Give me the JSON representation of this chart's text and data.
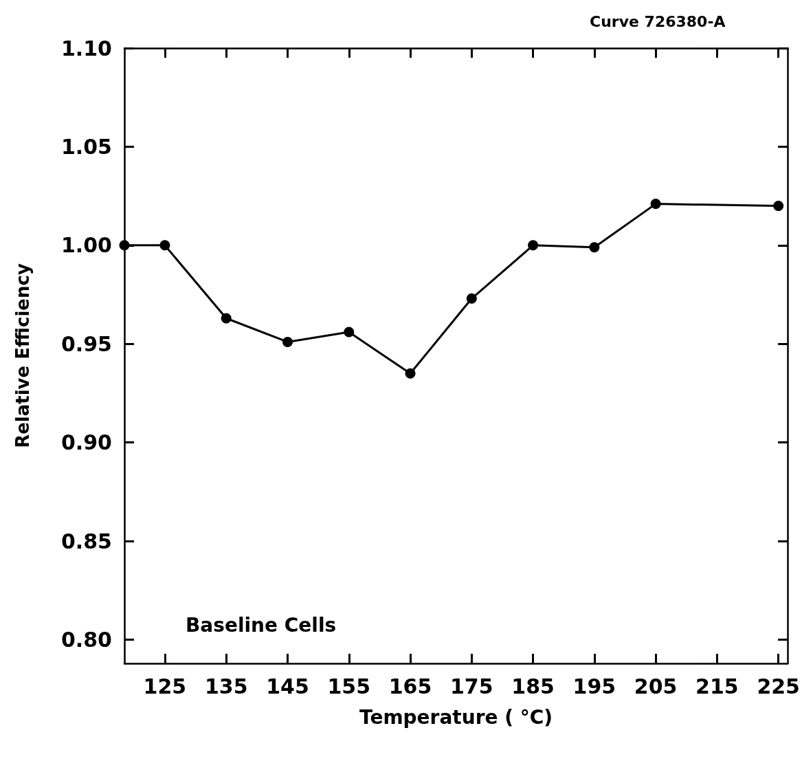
{
  "chart_data": {
    "type": "line",
    "xlabel": "Temperature ( °C)",
    "ylabel": "Relative Efficiency",
    "annotations": [
      "Curve 726380-A",
      "Baseline Cells"
    ],
    "x": [
      118.4,
      125,
      135,
      145,
      155,
      165,
      175,
      185,
      195,
      205,
      225
    ],
    "series": [
      {
        "color": "#000000",
        "values": [
          1.0,
          1.0,
          0.963,
          0.951,
          0.956,
          0.935,
          0.973,
          1.0,
          0.999,
          1.021,
          1.02
        ]
      }
    ],
    "xlim": [
      118.4,
      226.5
    ],
    "xticks": [
      125,
      135,
      145,
      155,
      165,
      175,
      185,
      195,
      205,
      215,
      225
    ],
    "ylim": [
      0.788,
      1.1
    ],
    "yticks": [
      {
        "value": 0.8,
        "label": "0.80"
      },
      {
        "value": 0.85,
        "label": "0.85"
      },
      {
        "value": 0.9,
        "label": "0.90"
      },
      {
        "value": 0.95,
        "label": "0.95"
      },
      {
        "value": 1.0,
        "label": "1.00"
      },
      {
        "value": 1.05,
        "label": "1.05"
      },
      {
        "value": 1.1,
        "label": "1.10"
      }
    ],
    "grid": false,
    "marker": "circle",
    "line_style": "solid"
  }
}
